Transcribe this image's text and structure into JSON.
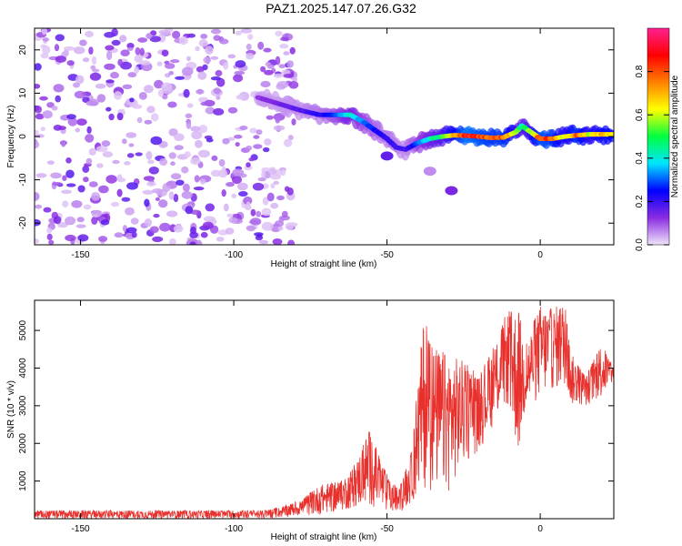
{
  "figure": {
    "title": "PAZ1.2025.147.07.26.G32"
  },
  "chart_data": [
    {
      "type": "heatmap",
      "title": "",
      "xlabel": "Height of straight line (km)",
      "ylabel": "Frequency (Hz)",
      "xlim": [
        -165,
        24
      ],
      "ylim": [
        -25,
        25
      ],
      "xticks": [
        -150,
        -100,
        -50,
        0
      ],
      "yticks": [
        -20,
        -10,
        0,
        10,
        20
      ],
      "colorbar": {
        "label": "Normalized spectral amplitude",
        "range": [
          0,
          1
        ],
        "ticks": [
          0.0,
          0.2,
          0.4,
          0.6,
          0.8
        ],
        "colors": [
          "#f0e4fa",
          "#8a2be2",
          "#0000ff",
          "#00e5ff",
          "#00ff40",
          "#ffff00",
          "#ff8000",
          "#ff0000",
          "#ff2090"
        ]
      },
      "noise_region": {
        "x_range": [
          -165,
          -80
        ],
        "y_range": [
          -25,
          25
        ],
        "amplitude": [
          0.02,
          0.18
        ]
      },
      "signal_track": [
        {
          "x": -92,
          "y": 9.0,
          "amp": 0.12
        },
        {
          "x": -85,
          "y": 7.5,
          "amp": 0.15
        },
        {
          "x": -78,
          "y": 6.0,
          "amp": 0.18
        },
        {
          "x": -72,
          "y": 5.0,
          "amp": 0.22
        },
        {
          "x": -66,
          "y": 5.0,
          "amp": 0.3
        },
        {
          "x": -62,
          "y": 5.0,
          "amp": 0.42
        },
        {
          "x": -58,
          "y": 3.5,
          "amp": 0.32
        },
        {
          "x": -54,
          "y": 1.5,
          "amp": 0.25
        },
        {
          "x": -50,
          "y": -0.5,
          "amp": 0.22
        },
        {
          "x": -47,
          "y": -2.5,
          "amp": 0.2
        },
        {
          "x": -44,
          "y": -3.0,
          "amp": 0.18
        },
        {
          "x": -40,
          "y": -1.5,
          "amp": 0.3
        },
        {
          "x": -36,
          "y": -0.5,
          "amp": 0.42
        },
        {
          "x": -32,
          "y": 0.0,
          "amp": 0.5
        },
        {
          "x": -28,
          "y": 0.3,
          "amp": 0.7
        },
        {
          "x": -24,
          "y": 0.2,
          "amp": 0.9
        },
        {
          "x": -20,
          "y": 0.0,
          "amp": 0.85
        },
        {
          "x": -16,
          "y": -0.3,
          "amp": 0.8
        },
        {
          "x": -12,
          "y": -0.2,
          "amp": 0.8
        },
        {
          "x": -8,
          "y": 1.0,
          "amp": 0.6
        },
        {
          "x": -6,
          "y": 2.5,
          "amp": 0.45
        },
        {
          "x": -3,
          "y": 1.0,
          "amp": 0.6
        },
        {
          "x": 0,
          "y": -0.5,
          "amp": 0.85
        },
        {
          "x": 4,
          "y": -0.5,
          "amp": 0.8
        },
        {
          "x": 8,
          "y": 0.0,
          "amp": 0.6
        },
        {
          "x": 12,
          "y": 0.3,
          "amp": 0.8
        },
        {
          "x": 16,
          "y": 0.5,
          "amp": 0.6
        },
        {
          "x": 20,
          "y": 0.5,
          "amp": 0.7
        },
        {
          "x": 24,
          "y": 0.5,
          "amp": 0.7
        }
      ],
      "isolated_blobs": [
        {
          "x": -29,
          "y": -12.5,
          "amp": 0.14
        },
        {
          "x": -36,
          "y": -8.0,
          "amp": 0.06
        },
        {
          "x": -50,
          "y": -4.5,
          "amp": 0.16
        }
      ]
    },
    {
      "type": "line",
      "title": "",
      "xlabel": "Height of straight line (km)",
      "ylabel": "SNR (10 * v/v)",
      "xlim": [
        -165,
        24
      ],
      "ylim": [
        0,
        5800
      ],
      "xticks": [
        -150,
        -100,
        -50,
        0
      ],
      "yticks": [
        1000,
        2000,
        3000,
        4000,
        5000
      ],
      "line_color": "#e8302c",
      "envelope": [
        {
          "x": -165,
          "low": 0,
          "high": 220
        },
        {
          "x": -90,
          "low": 0,
          "high": 220
        },
        {
          "x": -85,
          "low": 30,
          "high": 300
        },
        {
          "x": -78,
          "low": 80,
          "high": 500
        },
        {
          "x": -72,
          "low": 100,
          "high": 900
        },
        {
          "x": -65,
          "low": 200,
          "high": 1000
        },
        {
          "x": -60,
          "low": 300,
          "high": 1500
        },
        {
          "x": -56,
          "low": 300,
          "high": 2400
        },
        {
          "x": -52,
          "low": 200,
          "high": 1600
        },
        {
          "x": -49,
          "low": 150,
          "high": 1000
        },
        {
          "x": -46,
          "low": 150,
          "high": 800
        },
        {
          "x": -42,
          "low": 400,
          "high": 1800
        },
        {
          "x": -38,
          "low": 800,
          "high": 5400
        },
        {
          "x": -35,
          "low": 700,
          "high": 4600
        },
        {
          "x": -30,
          "low": 700,
          "high": 4400
        },
        {
          "x": -25,
          "low": 1400,
          "high": 4200
        },
        {
          "x": -20,
          "low": 1800,
          "high": 3800
        },
        {
          "x": -15,
          "low": 2500,
          "high": 4600
        },
        {
          "x": -11,
          "low": 3000,
          "high": 5500
        },
        {
          "x": -7,
          "low": 1600,
          "high": 5600
        },
        {
          "x": -5,
          "low": 2800,
          "high": 4600
        },
        {
          "x": 0,
          "low": 3200,
          "high": 5700
        },
        {
          "x": 4,
          "low": 3400,
          "high": 5600
        },
        {
          "x": 8,
          "low": 3500,
          "high": 5800
        },
        {
          "x": 10,
          "low": 3000,
          "high": 4400
        },
        {
          "x": 15,
          "low": 3000,
          "high": 3800
        },
        {
          "x": 20,
          "low": 3200,
          "high": 4700
        },
        {
          "x": 24,
          "low": 3600,
          "high": 4000
        }
      ]
    }
  ]
}
